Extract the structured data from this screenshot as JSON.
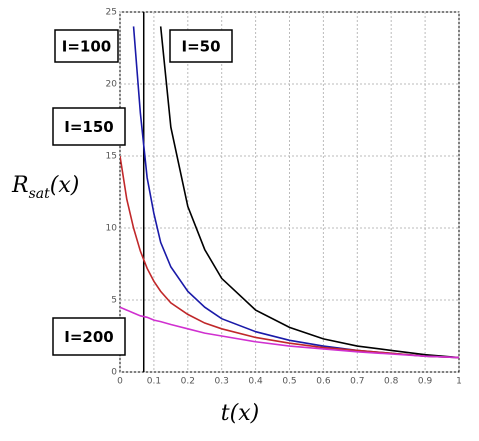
{
  "chart_data": {
    "type": "line",
    "xlabel": {
      "main": "t",
      "tail": "(x)"
    },
    "ylabel": {
      "main": "R",
      "sub": "sat",
      "tail": "(x)"
    },
    "x": [
      0,
      0.02,
      0.04,
      0.06,
      0.08,
      0.1,
      0.12,
      0.15,
      0.2,
      0.25,
      0.3,
      0.4,
      0.5,
      0.6,
      0.7,
      0.8,
      0.9,
      1
    ],
    "series": [
      {
        "name": "I=50",
        "color": "#000000",
        "values": [
          null,
          null,
          null,
          null,
          null,
          null,
          24,
          17,
          11.5,
          8.5,
          6.5,
          4.3,
          3.1,
          2.3,
          1.8,
          1.5,
          1.2,
          1.0
        ]
      },
      {
        "name": "I=100",
        "color": "#1a1aa8",
        "values": [
          null,
          null,
          24,
          18,
          13.5,
          11,
          9,
          7.3,
          5.6,
          4.5,
          3.7,
          2.8,
          2.2,
          1.8,
          1.5,
          1.3,
          1.1,
          1.0
        ]
      },
      {
        "name": "I=150",
        "color": "#c0282a",
        "values": [
          15,
          12,
          10,
          8.4,
          7.2,
          6.3,
          5.6,
          4.8,
          4,
          3.4,
          3.0,
          2.4,
          2.0,
          1.7,
          1.5,
          1.3,
          1.1,
          1.0
        ]
      },
      {
        "name": "I=200",
        "color": "#d030d0",
        "values": [
          4.5,
          4.3,
          4.1,
          3.9,
          3.8,
          3.6,
          3.5,
          3.3,
          3.0,
          2.7,
          2.5,
          2.1,
          1.8,
          1.6,
          1.4,
          1.25,
          1.1,
          1.0
        ]
      }
    ],
    "vlines": [
      0.07
    ],
    "xlim": [
      0,
      1
    ],
    "xticks": [
      0,
      0.1,
      0.2,
      0.3,
      0.4,
      0.5,
      0.6,
      0.7,
      0.8,
      0.9,
      1
    ],
    "ylim": [
      0,
      25
    ],
    "yticks": [
      0,
      5,
      10,
      15,
      20,
      25
    ],
    "grid": true
  }
}
